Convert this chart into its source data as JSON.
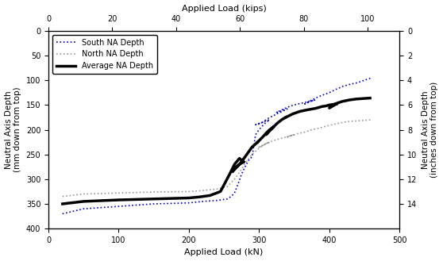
{
  "title_top": "Applied Load (kips)",
  "xlabel": "Applied Load (kN)",
  "ylabel_left": "Neutral Axis Depth\n(mm down from top)",
  "ylabel_right": "Neutral Axis Depth\n(inches down from top)",
  "xlim_kN": [
    0,
    500
  ],
  "xlim_kips": [
    0,
    110
  ],
  "ylim_mm": [
    0,
    400
  ],
  "ylim_in": [
    0,
    16
  ],
  "yticks_mm": [
    0,
    50,
    100,
    150,
    200,
    250,
    300,
    350,
    400
  ],
  "yticks_in": [
    0,
    2,
    4,
    6,
    8,
    10,
    12,
    14
  ],
  "xticks_kN": [
    0,
    100,
    200,
    300,
    400,
    500
  ],
  "xticks_kips": [
    0,
    20,
    40,
    60,
    80,
    100
  ],
  "south_color": "#0000CC",
  "north_color": "#999999",
  "avg_color": "#000000",
  "south_x": [
    20,
    50,
    100,
    150,
    200,
    220,
    240,
    255,
    260,
    265,
    270,
    275,
    280,
    285,
    290,
    295,
    300,
    305,
    310,
    315,
    310,
    305,
    300,
    295,
    305,
    310,
    315,
    320,
    325,
    330,
    340,
    335,
    330,
    325,
    335,
    345,
    355,
    365,
    370,
    380,
    375,
    370,
    365,
    375,
    385,
    400,
    410,
    420,
    430,
    440,
    450,
    460
  ],
  "south_y": [
    370,
    360,
    355,
    350,
    348,
    345,
    343,
    340,
    335,
    328,
    310,
    290,
    275,
    262,
    255,
    210,
    200,
    192,
    185,
    180,
    182,
    185,
    188,
    190,
    185,
    180,
    175,
    172,
    168,
    165,
    158,
    160,
    163,
    165,
    158,
    152,
    148,
    145,
    143,
    140,
    142,
    145,
    148,
    140,
    133,
    125,
    118,
    112,
    108,
    105,
    100,
    95
  ],
  "north_x": [
    20,
    50,
    100,
    150,
    200,
    220,
    240,
    255,
    265,
    275,
    280,
    290,
    300,
    310,
    315,
    310,
    305,
    300,
    315,
    320,
    330,
    340,
    350,
    345,
    340,
    355,
    365,
    375,
    385,
    395,
    410,
    420,
    430,
    440,
    450,
    460
  ],
  "north_y": [
    335,
    330,
    328,
    326,
    325,
    323,
    320,
    315,
    300,
    280,
    268,
    250,
    237,
    228,
    225,
    228,
    232,
    235,
    225,
    222,
    218,
    214,
    210,
    212,
    215,
    208,
    205,
    200,
    197,
    193,
    188,
    185,
    183,
    182,
    181,
    180
  ],
  "avg_x1": [
    20,
    50,
    100,
    150,
    200,
    215,
    230,
    245,
    258,
    265,
    272,
    278
  ],
  "avg_y1": [
    350,
    345,
    342,
    340,
    338,
    336,
    333,
    325,
    290,
    270,
    258,
    265
  ],
  "avg_loop1_x": [
    278,
    272,
    265,
    262,
    272,
    280,
    290,
    298
  ],
  "avg_loop1_y": [
    265,
    270,
    278,
    285,
    270,
    255,
    235,
    225
  ],
  "avg_x2": [
    298,
    305,
    310,
    315,
    320
  ],
  "avg_y2": [
    225,
    215,
    207,
    200,
    195
  ],
  "avg_loop2_x": [
    320,
    316,
    312,
    310,
    318,
    325,
    332,
    338
  ],
  "avg_loop2_y": [
    195,
    200,
    205,
    210,
    198,
    188,
    180,
    175
  ],
  "avg_x3": [
    338,
    348,
    358,
    368,
    380,
    390,
    395,
    400,
    410
  ],
  "avg_y3": [
    175,
    168,
    163,
    160,
    157,
    153,
    152,
    150,
    148
  ],
  "avg_loop3_x": [
    410,
    405,
    400,
    408,
    418,
    428,
    438,
    448,
    458
  ],
  "avg_loop3_y": [
    148,
    152,
    156,
    148,
    143,
    140,
    138,
    137,
    136
  ],
  "legend_entries": [
    {
      "label": "South NA Depth",
      "color": "#0000CC",
      "lw": 1.2,
      "ls": "dotted"
    },
    {
      "label": "North NA Depth",
      "color": "#999999",
      "lw": 1.2,
      "ls": "dotted"
    },
    {
      "label": "Average NA Depth",
      "color": "#000000",
      "lw": 2.5,
      "ls": "solid"
    }
  ]
}
